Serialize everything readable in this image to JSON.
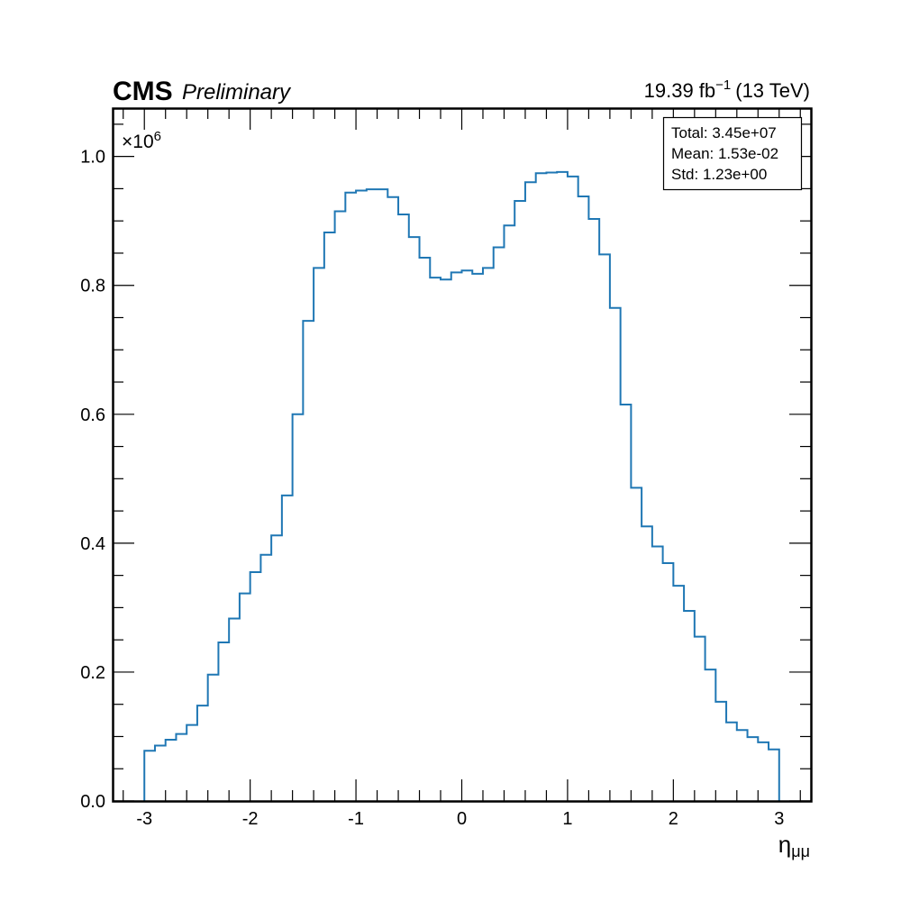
{
  "header": {
    "experiment": "CMS",
    "status": "Preliminary",
    "lumi_value": "19.39 fb",
    "lumi_exp": "−1",
    "energy": "(13 TeV)"
  },
  "stats_box": {
    "total": "Total: 3.45e+07",
    "mean": "Mean: 1.53e-02",
    "std": "Std: 1.23e+00"
  },
  "chart_data": {
    "type": "bar",
    "style": "step-histogram",
    "xlabel_main": "η",
    "xlabel_sub": "μμ",
    "ylabel": "",
    "y_multiplier_base": "×10",
    "y_multiplier_exp": "6",
    "xlim": [
      -3.3,
      3.3
    ],
    "ylim": [
      0,
      1.075
    ],
    "x_ticks": [
      -3,
      -2,
      -1,
      0,
      1,
      2,
      3
    ],
    "x_tick_labels": [
      "-3",
      "-2",
      "-1",
      "0",
      "1",
      "2",
      "3"
    ],
    "y_ticks": [
      0,
      0.2,
      0.4,
      0.6,
      0.8,
      1.0
    ],
    "y_tick_labels": [
      "0.0",
      "0.2",
      "0.4",
      "0.6",
      "0.8",
      "1.0"
    ],
    "bin_edges": [
      -3.0,
      -2.9,
      -2.8,
      -2.7,
      -2.6,
      -2.5,
      -2.4,
      -2.3,
      -2.2,
      -2.1,
      -2.0,
      -1.9,
      -1.8,
      -1.7,
      -1.6,
      -1.5,
      -1.4,
      -1.3,
      -1.2,
      -1.1,
      -1.0,
      -0.9,
      -0.8,
      -0.7,
      -0.6,
      -0.5,
      -0.4,
      -0.3,
      -0.2,
      -0.1,
      0.0,
      0.1,
      0.2,
      0.3,
      0.4,
      0.5,
      0.6,
      0.7,
      0.8,
      0.9,
      1.0,
      1.1,
      1.2,
      1.3,
      1.4,
      1.5,
      1.6,
      1.7,
      1.8,
      1.9,
      2.0,
      2.1,
      2.2,
      2.3,
      2.4,
      2.5,
      2.6,
      2.7,
      2.8,
      2.9,
      3.0
    ],
    "series": [
      {
        "color": "#1f77b4",
        "values": [
          0.078,
          0.086,
          0.095,
          0.104,
          0.118,
          0.148,
          0.196,
          0.246,
          0.283,
          0.322,
          0.355,
          0.382,
          0.412,
          0.474,
          0.6,
          0.745,
          0.827,
          0.882,
          0.915,
          0.944,
          0.947,
          0.949,
          0.949,
          0.937,
          0.91,
          0.875,
          0.843,
          0.812,
          0.809,
          0.82,
          0.823,
          0.818,
          0.827,
          0.859,
          0.893,
          0.931,
          0.96,
          0.974,
          0.975,
          0.976,
          0.969,
          0.938,
          0.903,
          0.848,
          0.765,
          0.615,
          0.486,
          0.426,
          0.395,
          0.369,
          0.334,
          0.295,
          0.255,
          0.204,
          0.154,
          0.122,
          0.11,
          0.099,
          0.091,
          0.08
        ]
      }
    ]
  }
}
